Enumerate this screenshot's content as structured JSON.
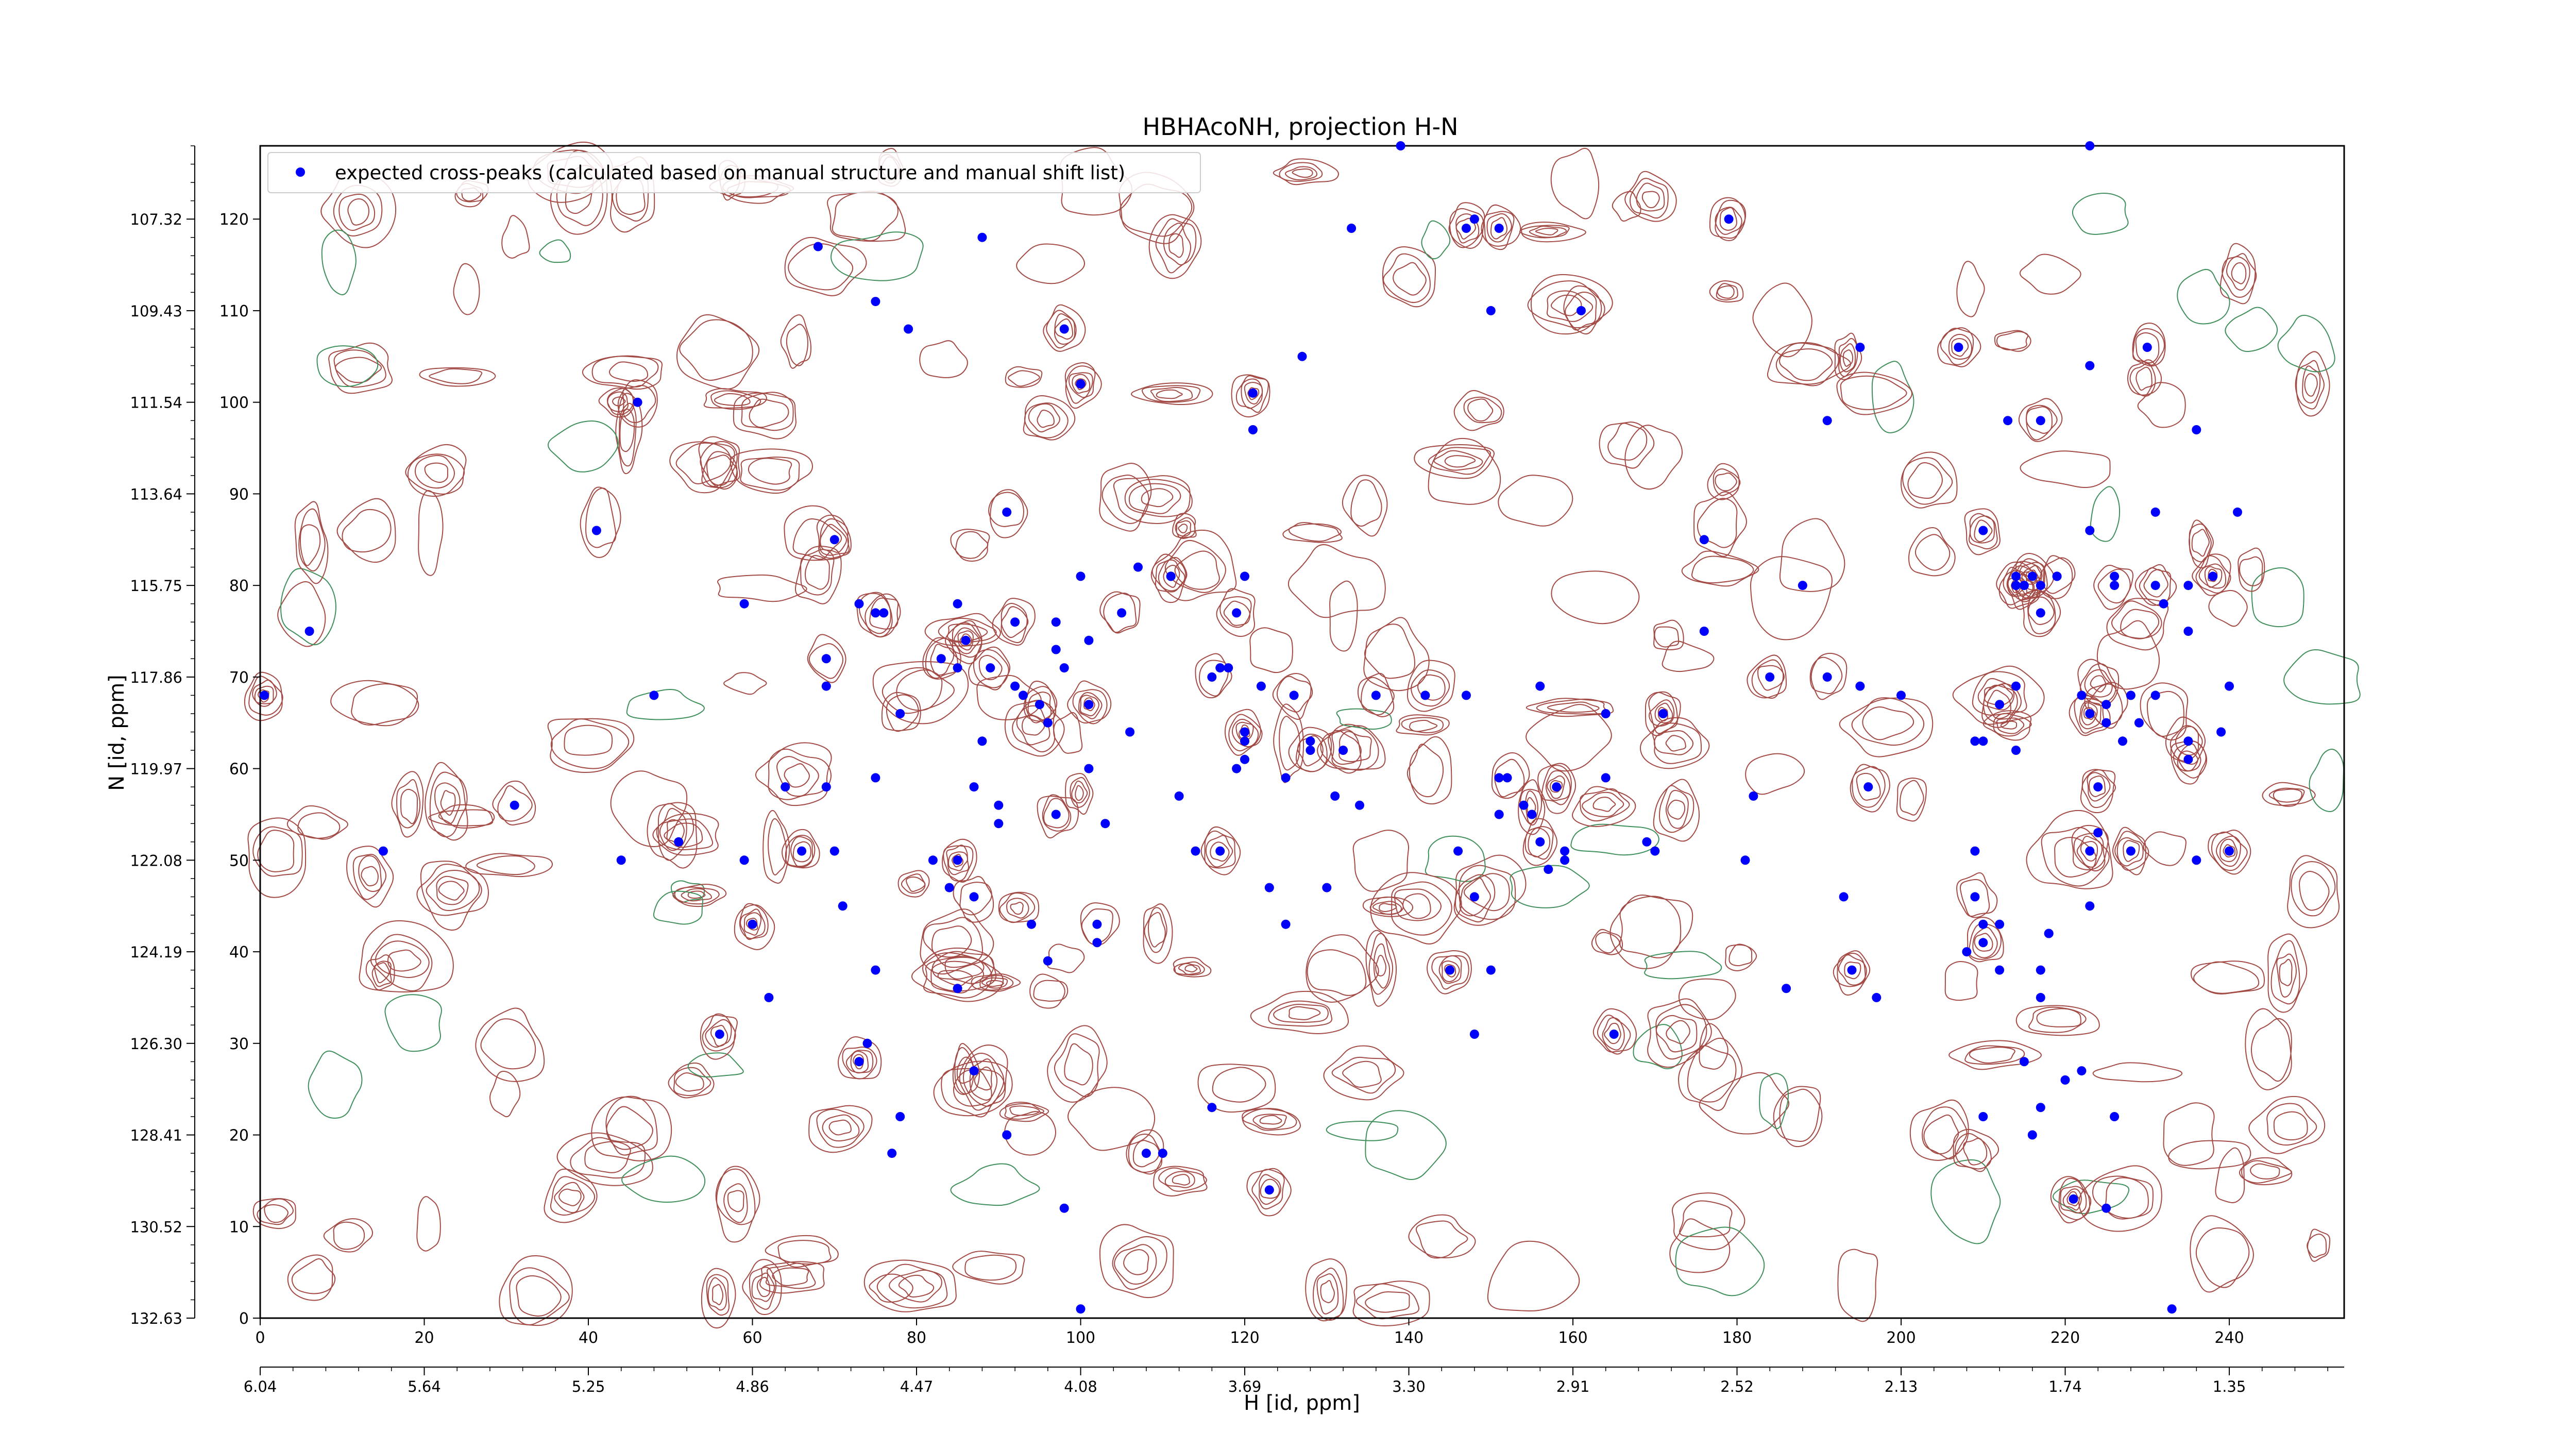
{
  "chart_data": {
    "type": "scatter",
    "title": "HBHAcoNH, projection H-N",
    "xlabel": "H [id, ppm]",
    "ylabel": "N [id, ppm]",
    "xlim": [
      0,
      254
    ],
    "ylim": [
      0,
      128
    ],
    "x_ticks": [
      0,
      20,
      40,
      60,
      80,
      100,
      120,
      140,
      160,
      180,
      200,
      220,
      240
    ],
    "y_ticks": [
      0,
      10,
      20,
      30,
      40,
      50,
      60,
      70,
      80,
      90,
      100,
      110,
      120
    ],
    "x_ppm_ticks": [
      {
        "pos": 0,
        "label": "6.04"
      },
      {
        "pos": 20,
        "label": "5.64"
      },
      {
        "pos": 40,
        "label": "5.25"
      },
      {
        "pos": 60,
        "label": "4.86"
      },
      {
        "pos": 80,
        "label": "4.47"
      },
      {
        "pos": 100,
        "label": "4.08"
      },
      {
        "pos": 120,
        "label": "3.69"
      },
      {
        "pos": 140,
        "label": "3.30"
      },
      {
        "pos": 160,
        "label": "2.91"
      },
      {
        "pos": 180,
        "label": "2.52"
      },
      {
        "pos": 200,
        "label": "2.13"
      },
      {
        "pos": 220,
        "label": "1.74"
      },
      {
        "pos": 240,
        "label": "1.35"
      }
    ],
    "y_ppm_ticks": [
      {
        "pos": 0,
        "label": "132.63"
      },
      {
        "pos": 10,
        "label": "130.52"
      },
      {
        "pos": 20,
        "label": "128.41"
      },
      {
        "pos": 30,
        "label": "126.30"
      },
      {
        "pos": 40,
        "label": "124.19"
      },
      {
        "pos": 50,
        "label": "122.08"
      },
      {
        "pos": 60,
        "label": "119.97"
      },
      {
        "pos": 70,
        "label": "117.86"
      },
      {
        "pos": 80,
        "label": "115.75"
      },
      {
        "pos": 90,
        "label": "113.64"
      },
      {
        "pos": 100,
        "label": "111.54"
      },
      {
        "pos": 110,
        "label": "109.43"
      },
      {
        "pos": 120,
        "label": "107.32"
      }
    ],
    "legend": {
      "label": "expected cross-peaks (calculated based on manual structure and manual shift list)",
      "position": "top-left"
    },
    "series": [
      {
        "name": "expected cross-peaks (calculated based on manual structure and manual shift list)",
        "color": "#0000ff",
        "marker": "circle",
        "points": [
          [
            0.5,
            68
          ],
          [
            6,
            75
          ],
          [
            15,
            51
          ],
          [
            31,
            56
          ],
          [
            41,
            86
          ],
          [
            44,
            50
          ],
          [
            46,
            100
          ],
          [
            48,
            68
          ],
          [
            51,
            52
          ],
          [
            56,
            31
          ],
          [
            59,
            50
          ],
          [
            59,
            78
          ],
          [
            60,
            43
          ],
          [
            62,
            35
          ],
          [
            64,
            58
          ],
          [
            66,
            51
          ],
          [
            68,
            117
          ],
          [
            69,
            58
          ],
          [
            69,
            72
          ],
          [
            69,
            69
          ],
          [
            70,
            51
          ],
          [
            70,
            85
          ],
          [
            71,
            45
          ],
          [
            73,
            78
          ],
          [
            73,
            28
          ],
          [
            74,
            30
          ],
          [
            75,
            111
          ],
          [
            75,
            77
          ],
          [
            75,
            59
          ],
          [
            75,
            38
          ],
          [
            76,
            77
          ],
          [
            77,
            18
          ],
          [
            78,
            22
          ],
          [
            78,
            66
          ],
          [
            79,
            108
          ],
          [
            82,
            50
          ],
          [
            83,
            72
          ],
          [
            84,
            47
          ],
          [
            85,
            36
          ],
          [
            85,
            50
          ],
          [
            85,
            71
          ],
          [
            85,
            78
          ],
          [
            86,
            74
          ],
          [
            87,
            27
          ],
          [
            87,
            58
          ],
          [
            87,
            46
          ],
          [
            88,
            118
          ],
          [
            88,
            63
          ],
          [
            89,
            71
          ],
          [
            90,
            56
          ],
          [
            90,
            54
          ],
          [
            91,
            88
          ],
          [
            91,
            20
          ],
          [
            92,
            69
          ],
          [
            92,
            76
          ],
          [
            93,
            68
          ],
          [
            94,
            43
          ],
          [
            95,
            67
          ],
          [
            96,
            65
          ],
          [
            96,
            39
          ],
          [
            97,
            55
          ],
          [
            97,
            76
          ],
          [
            97,
            73
          ],
          [
            98,
            108
          ],
          [
            98,
            71
          ],
          [
            98,
            12
          ],
          [
            100,
            102
          ],
          [
            100,
            81
          ],
          [
            100,
            1
          ],
          [
            101,
            67
          ],
          [
            101,
            60
          ],
          [
            101,
            74
          ],
          [
            102,
            43
          ],
          [
            102,
            41
          ],
          [
            103,
            54
          ],
          [
            105,
            77
          ],
          [
            106,
            64
          ],
          [
            107,
            82
          ],
          [
            108,
            18
          ],
          [
            110,
            18
          ],
          [
            111,
            81
          ],
          [
            111,
            81
          ],
          [
            112,
            57
          ],
          [
            114,
            51
          ],
          [
            116,
            70
          ],
          [
            116,
            23
          ],
          [
            117,
            71
          ],
          [
            117,
            51
          ],
          [
            118,
            71
          ],
          [
            119,
            60
          ],
          [
            119,
            77
          ],
          [
            120,
            81
          ],
          [
            120,
            63
          ],
          [
            120,
            64
          ],
          [
            120,
            61
          ],
          [
            121,
            97
          ],
          [
            121,
            101
          ],
          [
            122,
            69
          ],
          [
            123,
            47
          ],
          [
            123,
            14
          ],
          [
            125,
            43
          ],
          [
            125,
            59
          ],
          [
            126,
            68
          ],
          [
            127,
            105
          ],
          [
            128,
            63
          ],
          [
            128,
            62
          ],
          [
            130,
            47
          ],
          [
            131,
            57
          ],
          [
            132,
            62
          ],
          [
            133,
            119
          ],
          [
            134,
            56
          ],
          [
            136,
            68
          ],
          [
            139,
            128
          ],
          [
            142,
            68
          ],
          [
            145,
            38
          ],
          [
            146,
            51
          ],
          [
            147,
            68
          ],
          [
            147,
            119
          ],
          [
            148,
            120
          ],
          [
            148,
            31
          ],
          [
            148,
            46
          ],
          [
            150,
            38
          ],
          [
            150,
            110
          ],
          [
            151,
            119
          ],
          [
            151,
            55
          ],
          [
            151,
            59
          ],
          [
            152,
            59
          ],
          [
            154,
            56
          ],
          [
            155,
            55
          ],
          [
            156,
            52
          ],
          [
            156,
            69
          ],
          [
            157,
            49
          ],
          [
            158,
            58
          ],
          [
            159,
            50
          ],
          [
            159,
            51
          ],
          [
            161,
            110
          ],
          [
            164,
            59
          ],
          [
            164,
            66
          ],
          [
            165,
            31
          ],
          [
            169,
            52
          ],
          [
            170,
            51
          ],
          [
            171,
            66
          ],
          [
            176,
            75
          ],
          [
            176,
            85
          ],
          [
            179,
            120
          ],
          [
            181,
            50
          ],
          [
            182,
            57
          ],
          [
            184,
            70
          ],
          [
            186,
            36
          ],
          [
            188,
            80
          ],
          [
            191,
            70
          ],
          [
            191,
            98
          ],
          [
            193,
            46
          ],
          [
            194,
            38
          ],
          [
            195,
            69
          ],
          [
            195,
            106
          ],
          [
            196,
            58
          ],
          [
            197,
            35
          ],
          [
            200,
            68
          ],
          [
            207,
            106
          ],
          [
            208,
            40
          ],
          [
            209,
            63
          ],
          [
            209,
            46
          ],
          [
            209,
            51
          ],
          [
            210,
            22
          ],
          [
            210,
            41
          ],
          [
            210,
            63
          ],
          [
            210,
            43
          ],
          [
            210,
            86
          ],
          [
            212,
            43
          ],
          [
            212,
            38
          ],
          [
            212,
            67
          ],
          [
            213,
            98
          ],
          [
            214,
            69
          ],
          [
            214,
            80
          ],
          [
            214,
            81
          ],
          [
            214,
            62
          ],
          [
            215,
            80
          ],
          [
            215,
            28
          ],
          [
            216,
            20
          ],
          [
            216,
            81
          ],
          [
            217,
            23
          ],
          [
            217,
            38
          ],
          [
            217,
            98
          ],
          [
            217,
            35
          ],
          [
            217,
            80
          ],
          [
            217,
            77
          ],
          [
            218,
            42
          ],
          [
            218,
            42
          ],
          [
            219,
            81
          ],
          [
            219,
            81
          ],
          [
            220,
            26
          ],
          [
            221,
            13
          ],
          [
            222,
            68
          ],
          [
            222,
            27
          ],
          [
            223,
            66
          ],
          [
            223,
            128
          ],
          [
            223,
            104
          ],
          [
            223,
            51
          ],
          [
            223,
            86
          ],
          [
            223,
            45
          ],
          [
            224,
            58
          ],
          [
            224,
            53
          ],
          [
            225,
            65
          ],
          [
            225,
            67
          ],
          [
            225,
            12
          ],
          [
            226,
            81
          ],
          [
            226,
            80
          ],
          [
            226,
            22
          ],
          [
            227,
            63
          ],
          [
            228,
            51
          ],
          [
            228,
            68
          ],
          [
            229,
            65
          ],
          [
            230,
            106
          ],
          [
            231,
            68
          ],
          [
            231,
            88
          ],
          [
            231,
            80
          ],
          [
            232,
            78
          ],
          [
            233,
            1
          ],
          [
            235,
            63
          ],
          [
            235,
            80
          ],
          [
            235,
            75
          ],
          [
            235,
            61
          ],
          [
            236,
            50
          ],
          [
            236,
            97
          ],
          [
            238,
            81
          ],
          [
            239,
            64
          ],
          [
            240,
            69
          ],
          [
            240,
            51
          ],
          [
            241,
            88
          ]
        ]
      }
    ]
  }
}
